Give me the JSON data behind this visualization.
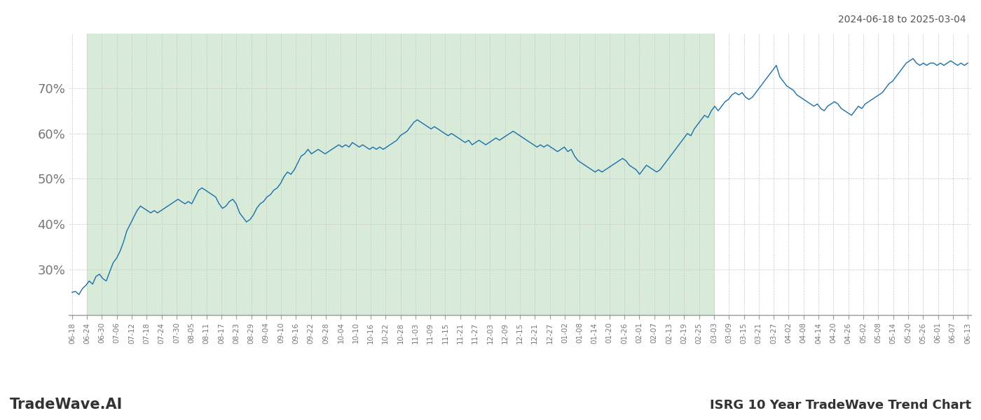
{
  "title_top_right": "2024-06-18 to 2025-03-04",
  "title_bottom_right": "ISRG 10 Year TradeWave Trend Chart",
  "title_bottom_left": "TradeWave.AI",
  "line_color": "#1a6fab",
  "bg_shade_color": "#d8ead8",
  "grid_color": "#c8c8c8",
  "ylim": [
    20,
    82
  ],
  "yticks": [
    30,
    40,
    50,
    60,
    70
  ],
  "ytick_labels": [
    "30%",
    "40%",
    "50%",
    "60%",
    "70%"
  ],
  "x_labels": [
    "06-18",
    "06-24",
    "06-30",
    "07-06",
    "07-12",
    "07-18",
    "07-24",
    "07-30",
    "08-05",
    "08-11",
    "08-17",
    "08-23",
    "08-29",
    "09-04",
    "09-10",
    "09-16",
    "09-22",
    "09-28",
    "10-04",
    "10-10",
    "10-16",
    "10-22",
    "10-28",
    "11-03",
    "11-09",
    "11-15",
    "11-21",
    "11-27",
    "12-03",
    "12-09",
    "12-15",
    "12-21",
    "12-27",
    "01-02",
    "01-08",
    "01-14",
    "01-20",
    "01-26",
    "02-01",
    "02-07",
    "02-13",
    "02-19",
    "02-25",
    "03-03",
    "03-09",
    "03-15",
    "03-21",
    "03-27",
    "04-02",
    "04-08",
    "04-14",
    "04-20",
    "04-26",
    "05-02",
    "05-08",
    "05-14",
    "05-20",
    "05-26",
    "06-01",
    "06-07",
    "06-13"
  ],
  "shade_label_start": "06-24",
  "shade_label_end": "03-03",
  "values": [
    25.0,
    25.2,
    24.5,
    25.8,
    26.5,
    27.5,
    26.8,
    28.5,
    29.0,
    28.0,
    27.5,
    29.5,
    31.5,
    32.5,
    34.0,
    36.0,
    38.5,
    40.0,
    41.5,
    43.0,
    44.0,
    43.5,
    43.0,
    42.5,
    43.0,
    42.5,
    43.0,
    43.5,
    44.0,
    44.5,
    45.0,
    45.5,
    45.0,
    44.5,
    45.0,
    44.5,
    46.0,
    47.5,
    48.0,
    47.5,
    47.0,
    46.5,
    46.0,
    44.5,
    43.5,
    44.0,
    45.0,
    45.5,
    44.5,
    42.5,
    41.5,
    40.5,
    41.0,
    42.0,
    43.5,
    44.5,
    45.0,
    46.0,
    46.5,
    47.5,
    48.0,
    49.0,
    50.5,
    51.5,
    51.0,
    52.0,
    53.5,
    55.0,
    55.5,
    56.5,
    55.5,
    56.0,
    56.5,
    56.0,
    55.5,
    56.0,
    56.5,
    57.0,
    57.5,
    57.0,
    57.5,
    57.0,
    58.0,
    57.5,
    57.0,
    57.5,
    57.0,
    56.5,
    57.0,
    56.5,
    57.0,
    56.5,
    57.0,
    57.5,
    58.0,
    58.5,
    59.5,
    60.0,
    60.5,
    61.5,
    62.5,
    63.0,
    62.5,
    62.0,
    61.5,
    61.0,
    61.5,
    61.0,
    60.5,
    60.0,
    59.5,
    60.0,
    59.5,
    59.0,
    58.5,
    58.0,
    58.5,
    57.5,
    58.0,
    58.5,
    58.0,
    57.5,
    58.0,
    58.5,
    59.0,
    58.5,
    59.0,
    59.5,
    60.0,
    60.5,
    60.0,
    59.5,
    59.0,
    58.5,
    58.0,
    57.5,
    57.0,
    57.5,
    57.0,
    57.5,
    57.0,
    56.5,
    56.0,
    56.5,
    57.0,
    56.0,
    56.5,
    55.0,
    54.0,
    53.5,
    53.0,
    52.5,
    52.0,
    51.5,
    52.0,
    51.5,
    52.0,
    52.5,
    53.0,
    53.5,
    54.0,
    54.5,
    54.0,
    53.0,
    52.5,
    52.0,
    51.0,
    52.0,
    53.0,
    52.5,
    52.0,
    51.5,
    52.0,
    53.0,
    54.0,
    55.0,
    56.0,
    57.0,
    58.0,
    59.0,
    60.0,
    59.5,
    61.0,
    62.0,
    63.0,
    64.0,
    63.5,
    65.0,
    66.0,
    65.0,
    66.0,
    67.0,
    67.5,
    68.5,
    69.0,
    68.5,
    69.0,
    68.0,
    67.5,
    68.0,
    69.0,
    70.0,
    71.0,
    72.0,
    73.0,
    74.0,
    75.0,
    72.5,
    71.5,
    70.5,
    70.0,
    69.5,
    68.5,
    68.0,
    67.5,
    67.0,
    66.5,
    66.0,
    66.5,
    65.5,
    65.0,
    66.0,
    66.5,
    67.0,
    66.5,
    65.5,
    65.0,
    64.5,
    64.0,
    65.0,
    66.0,
    65.5,
    66.5,
    67.0,
    67.5,
    68.0,
    68.5,
    69.0,
    70.0,
    71.0,
    71.5,
    72.5,
    73.5,
    74.5,
    75.5,
    76.0,
    76.5,
    75.5,
    75.0,
    75.5,
    75.0,
    75.5,
    75.5,
    75.0,
    75.5,
    75.0,
    75.5,
    76.0,
    75.5,
    75.0,
    75.5,
    75.0,
    75.5
  ]
}
